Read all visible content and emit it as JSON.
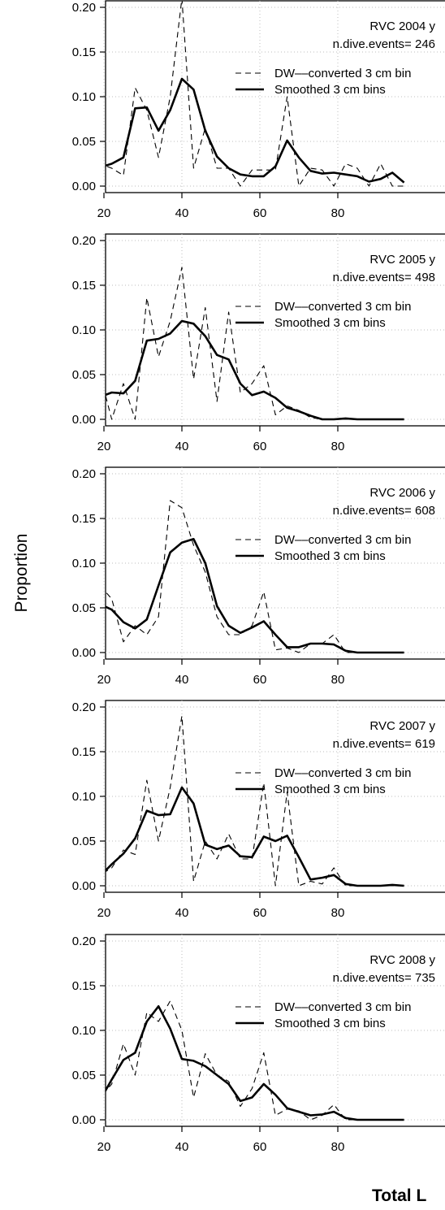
{
  "figure": {
    "ylabel": "Proportion",
    "xlabel": "Total L"
  },
  "legend": {
    "dashed_label": "DW––converted 3 cm bin",
    "solid_label": "Smoothed 3 cm bins"
  },
  "chart_data": [
    {
      "type": "line",
      "title": "RVC 2004 y",
      "subtitle": "n.dive.events= 246",
      "x": [
        16,
        19,
        22,
        25,
        28,
        31,
        34,
        37,
        40,
        43,
        46,
        49,
        52,
        55,
        58,
        61,
        64,
        67,
        70,
        73,
        76,
        79,
        82,
        85,
        88,
        91,
        94,
        97
      ],
      "ylim": [
        0,
        0.2
      ],
      "xlim": [
        16,
        97
      ],
      "xticks": [
        "20",
        "40",
        "60",
        "80"
      ],
      "yticks": [
        "0.00",
        "0.05",
        "0.10",
        "0.15",
        "0.20"
      ],
      "legend_position": "top-right",
      "series": [
        {
          "name": "DW––converted 3 cm bin",
          "style": "dashed",
          "values": [
            0.025,
            0.025,
            0.02,
            0.012,
            0.11,
            0.085,
            0.032,
            0.1,
            0.21,
            0.02,
            0.065,
            0.02,
            0.02,
            0.0,
            0.018,
            0.018,
            0.018,
            0.1,
            0.0,
            0.02,
            0.018,
            0.0,
            0.025,
            0.02,
            0.0,
            0.025,
            0.0,
            0.0
          ]
        },
        {
          "name": "Smoothed 3 cm bins",
          "style": "solid",
          "values": [
            0.018,
            0.021,
            0.025,
            0.032,
            0.087,
            0.088,
            0.062,
            0.085,
            0.12,
            0.108,
            0.062,
            0.033,
            0.02,
            0.013,
            0.011,
            0.011,
            0.022,
            0.051,
            0.032,
            0.017,
            0.014,
            0.015,
            0.013,
            0.011,
            0.005,
            0.008,
            0.015,
            0.004
          ]
        }
      ]
    },
    {
      "type": "line",
      "title": "RVC 2005 y",
      "subtitle": "n.dive.events= 498",
      "x": [
        16,
        19,
        22,
        25,
        28,
        31,
        34,
        37,
        40,
        43,
        46,
        49,
        52,
        55,
        58,
        61,
        64,
        67,
        70,
        73,
        76,
        79,
        82,
        85,
        88,
        91,
        94,
        97
      ],
      "ylim": [
        0,
        0.2
      ],
      "xlim": [
        16,
        97
      ],
      "xticks": [
        "20",
        "40",
        "60",
        "80"
      ],
      "yticks": [
        "0.00",
        "0.05",
        "0.10",
        "0.15",
        "0.20"
      ],
      "legend_position": "top-right",
      "series": [
        {
          "name": "DW––converted 3 cm bin",
          "style": "dashed",
          "values": [
            0.0,
            0.05,
            0.0,
            0.04,
            0.0,
            0.136,
            0.07,
            0.11,
            0.17,
            0.045,
            0.125,
            0.02,
            0.12,
            0.03,
            0.04,
            0.06,
            0.005,
            0.015,
            0.01,
            0.002,
            0.0,
            0.0,
            0.0,
            0.0,
            0.0,
            0.0,
            0.0,
            0.0
          ]
        },
        {
          "name": "Smoothed 3 cm bins",
          "style": "solid",
          "values": [
            0.003,
            0.025,
            0.03,
            0.029,
            0.043,
            0.088,
            0.09,
            0.096,
            0.11,
            0.107,
            0.093,
            0.072,
            0.067,
            0.04,
            0.027,
            0.031,
            0.024,
            0.013,
            0.009,
            0.004,
            0.0,
            0.0,
            0.001,
            0.0,
            0.0,
            0.0,
            0.0,
            0.0
          ]
        }
      ]
    },
    {
      "type": "line",
      "title": "RVC 2006 y",
      "subtitle": "n.dive.events= 608",
      "x": [
        16,
        19,
        22,
        25,
        28,
        31,
        34,
        37,
        40,
        43,
        46,
        49,
        52,
        55,
        58,
        61,
        64,
        67,
        70,
        73,
        76,
        79,
        82,
        85,
        88,
        91,
        94,
        97
      ],
      "ylim": [
        0,
        0.2
      ],
      "xlim": [
        16,
        97
      ],
      "xticks": [
        "20",
        "40",
        "60",
        "80"
      ],
      "yticks": [
        "0.00",
        "0.05",
        "0.10",
        "0.15",
        "0.20"
      ],
      "legend_position": "top-right",
      "series": [
        {
          "name": "DW––converted 3 cm bin",
          "style": "dashed",
          "values": [
            0.0,
            0.075,
            0.06,
            0.012,
            0.03,
            0.02,
            0.04,
            0.17,
            0.162,
            0.12,
            0.09,
            0.04,
            0.02,
            0.02,
            0.03,
            0.068,
            0.003,
            0.005,
            0.0,
            0.01,
            0.01,
            0.02,
            0.0,
            0.0,
            0.0,
            0.0,
            0.0,
            0.0
          ]
        },
        {
          "name": "Smoothed 3 cm bins",
          "style": "solid",
          "values": [
            0.036,
            0.054,
            0.048,
            0.034,
            0.027,
            0.037,
            0.075,
            0.112,
            0.123,
            0.127,
            0.1,
            0.052,
            0.03,
            0.022,
            0.028,
            0.035,
            0.02,
            0.006,
            0.006,
            0.01,
            0.01,
            0.009,
            0.002,
            0.0,
            0.0,
            0.0,
            0.0,
            0.0
          ]
        }
      ]
    },
    {
      "type": "line",
      "title": "RVC 2007 y",
      "subtitle": "n.dive.events= 619",
      "x": [
        16,
        19,
        22,
        25,
        28,
        31,
        34,
        37,
        40,
        43,
        46,
        49,
        52,
        55,
        58,
        61,
        64,
        67,
        70,
        73,
        76,
        79,
        82,
        85,
        88,
        91,
        94,
        97
      ],
      "ylim": [
        0,
        0.2
      ],
      "xlim": [
        16,
        97
      ],
      "xticks": [
        "20",
        "40",
        "60",
        "80"
      ],
      "yticks": [
        "0.00",
        "0.05",
        "0.10",
        "0.15",
        "0.20"
      ],
      "legend_position": "top-right",
      "series": [
        {
          "name": "DW––converted 3 cm bin",
          "style": "dashed",
          "values": [
            0.0,
            0.012,
            0.02,
            0.04,
            0.035,
            0.118,
            0.05,
            0.11,
            0.19,
            0.005,
            0.05,
            0.03,
            0.058,
            0.03,
            0.03,
            0.115,
            0.0,
            0.105,
            0.0,
            0.005,
            0.002,
            0.02,
            0.0,
            0.0,
            0.0,
            0.0,
            0.0,
            0.0
          ]
        },
        {
          "name": "Smoothed 3 cm bins",
          "style": "solid",
          "values": [
            0.007,
            0.011,
            0.024,
            0.036,
            0.053,
            0.084,
            0.079,
            0.08,
            0.11,
            0.092,
            0.046,
            0.041,
            0.045,
            0.033,
            0.032,
            0.055,
            0.05,
            0.056,
            0.032,
            0.007,
            0.009,
            0.012,
            0.002,
            0.0,
            0.0,
            0.0,
            0.001,
            0.0
          ]
        }
      ]
    },
    {
      "type": "line",
      "title": "RVC 2008 y",
      "subtitle": "n.dive.events= 735",
      "x": [
        16,
        19,
        22,
        25,
        28,
        31,
        34,
        37,
        40,
        43,
        46,
        49,
        52,
        55,
        58,
        61,
        64,
        67,
        70,
        73,
        76,
        79,
        82,
        85,
        88,
        91,
        94,
        97
      ],
      "ylim": [
        0,
        0.2
      ],
      "xlim": [
        16,
        97
      ],
      "xticks": [
        "20",
        "40",
        "60",
        "80"
      ],
      "yticks": [
        "0.00",
        "0.05",
        "0.10",
        "0.15",
        "0.20"
      ],
      "legend_position": "top-right",
      "series": [
        {
          "name": "DW––converted 3 cm bin",
          "style": "dashed",
          "values": [
            0.0,
            0.025,
            0.04,
            0.085,
            0.05,
            0.12,
            0.11,
            0.133,
            0.1,
            0.025,
            0.074,
            0.05,
            0.043,
            0.015,
            0.035,
            0.075,
            0.005,
            0.012,
            0.01,
            0.0,
            0.005,
            0.017,
            0.0,
            0.0,
            0.0,
            0.0,
            0.0,
            0.0
          ]
        },
        {
          "name": "Smoothed 3 cm bins",
          "style": "solid",
          "values": [
            0.006,
            0.022,
            0.045,
            0.067,
            0.075,
            0.11,
            0.127,
            0.102,
            0.068,
            0.066,
            0.06,
            0.05,
            0.04,
            0.021,
            0.025,
            0.04,
            0.028,
            0.013,
            0.009,
            0.005,
            0.006,
            0.009,
            0.002,
            0.0,
            0.0,
            0.0,
            0.0,
            0.0
          ]
        }
      ]
    }
  ]
}
